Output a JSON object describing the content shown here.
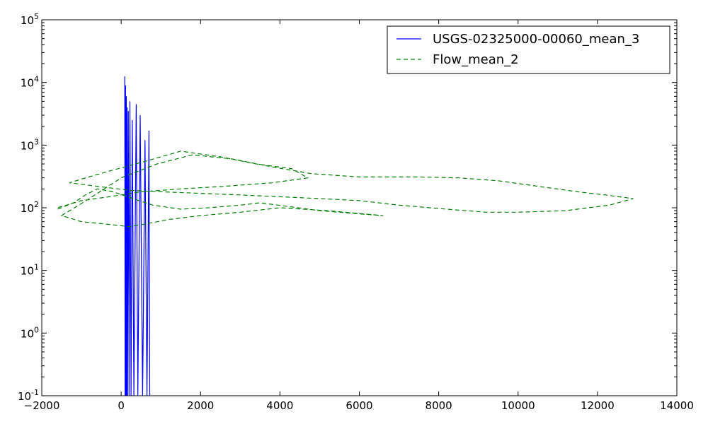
{
  "chart_data": {
    "type": "line",
    "title": "",
    "xlabel": "",
    "ylabel": "",
    "xlim": [
      -2000,
      14000
    ],
    "ylim": [
      0.1,
      100000
    ],
    "y_scale": "log",
    "grid": false,
    "legend_position": "top-right",
    "x_ticks": [
      "−2000",
      "0",
      "2000",
      "4000",
      "6000",
      "8000",
      "10000",
      "12000",
      "14000"
    ],
    "x_tick_values": [
      -2000,
      0,
      2000,
      4000,
      6000,
      8000,
      10000,
      12000,
      14000
    ],
    "y_ticks": [
      {
        "base": "10",
        "exp": "-1",
        "value": 0.1
      },
      {
        "base": "10",
        "exp": "0",
        "value": 1
      },
      {
        "base": "10",
        "exp": "1",
        "value": 10
      },
      {
        "base": "10",
        "exp": "2",
        "value": 100
      },
      {
        "base": "10",
        "exp": "3",
        "value": 1000
      },
      {
        "base": "10",
        "exp": "4",
        "value": 10000
      },
      {
        "base": "10",
        "exp": "5",
        "value": 100000
      }
    ],
    "series": [
      {
        "name": "USGS-02325000-00060_mean_3",
        "color": "#0000ff",
        "style": "solid",
        "x": [
          90,
          100,
          110,
          120,
          130,
          140,
          150,
          160,
          180,
          200,
          220,
          250,
          280,
          320,
          380,
          420,
          480,
          540,
          600,
          650,
          700,
          720
        ],
        "y": [
          12500,
          0.1,
          9000,
          0.1,
          6000,
          0.1,
          4000,
          0.1,
          3500,
          0.1,
          5000,
          0.1,
          2500,
          0.1,
          4500,
          0.1,
          3000,
          0.1,
          1200,
          0.1,
          1700,
          0.1
        ]
      },
      {
        "name": "Flow_mean_2",
        "color": "#008000",
        "style": "dashed",
        "x": [
          -1600,
          -1200,
          -900,
          -600,
          -200,
          300,
          800,
          1500,
          2200,
          3000,
          3500,
          4200,
          5000,
          6000,
          6600,
          5200,
          4000,
          3000,
          2000,
          1200,
          600,
          200,
          -400,
          -1000,
          -1500,
          -800,
          0,
          900,
          1800,
          2800,
          3800,
          4800,
          6000,
          7500,
          8500,
          9500,
          10500,
          11500,
          12200,
          12900,
          12300,
          11200,
          10000,
          9200,
          8200,
          7000,
          6000,
          5000,
          4000,
          3000,
          2000,
          1000,
          200,
          -600,
          -1300,
          -900,
          -200,
          600,
          1500,
          2500,
          3400,
          4300,
          4700,
          3800,
          2600,
          1500,
          500,
          -300,
          -1000,
          -1600
        ],
        "y": [
          95,
          120,
          160,
          200,
          180,
          140,
          110,
          95,
          100,
          110,
          120,
          105,
          90,
          80,
          75,
          90,
          100,
          85,
          75,
          65,
          55,
          50,
          55,
          60,
          75,
          140,
          300,
          500,
          700,
          600,
          450,
          350,
          310,
          310,
          300,
          270,
          220,
          180,
          160,
          140,
          110,
          90,
          85,
          85,
          95,
          110,
          130,
          140,
          150,
          160,
          170,
          180,
          190,
          220,
          250,
          300,
          400,
          550,
          800,
          650,
          500,
          420,
          300,
          250,
          220,
          200,
          180,
          150,
          130,
          100
        ]
      }
    ]
  }
}
